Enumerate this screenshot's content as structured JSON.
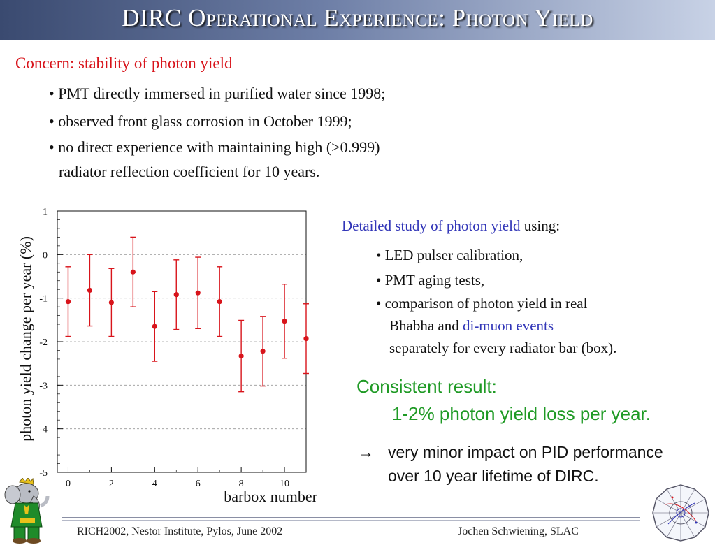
{
  "title": "DIRC Operational Experience: Photon Yield",
  "concern": "Concern: stability of photon yield",
  "bullets_top": [
    "• PMT directly immersed in purified water since 1998;",
    "• observed front glass corrosion in October 1999;",
    "• no direct experience with maintaining high (>0.999)",
    "radiator reflection coefficient for 10 years."
  ],
  "study": {
    "highlight": "Detailed study of photon yield",
    "rest": " using:",
    "bullets": [
      "• LED pulser calibration,",
      "• PMT aging tests,",
      "• comparison of photon yield in real"
    ],
    "line4_prefix": "Bhabha and ",
    "line4_highlight": "di-muon events",
    "line5": "separately for every radiator bar (box)."
  },
  "result": {
    "line1": "Consistent result:",
    "line2": "1-2% photon yield loss per year."
  },
  "impact": {
    "arrow": "→",
    "line1": "very minor impact on PID performance",
    "line2": "over 10 year lifetime of DIRC."
  },
  "footer": {
    "left": "RICH2002, Nestor Institute, Pylos, June 2002",
    "right": "Jochen Schwiening, SLAC"
  },
  "colors": {
    "red": "#d8141b",
    "blue": "#3236b8",
    "green": "#1f9a25",
    "title_bg": "#5a6a92"
  },
  "chart_data": {
    "type": "scatter",
    "xlabel": "barbox number",
    "ylabel": "photon yield change per year (%)",
    "xlim": [
      -0.5,
      11
    ],
    "ylim": [
      -5,
      1
    ],
    "xticks": [
      "0",
      "2",
      "4",
      "6",
      "8",
      "10"
    ],
    "yticks": [
      "1",
      "0",
      "-1",
      "-2",
      "-3",
      "-4",
      "-5"
    ],
    "grid": "horizontal dashed",
    "x": [
      0,
      1,
      2,
      3,
      4,
      5,
      6,
      7,
      8,
      9,
      10,
      11
    ],
    "y": [
      -1.08,
      -0.82,
      -1.1,
      -0.4,
      -1.65,
      -0.92,
      -0.88,
      -1.08,
      -2.33,
      -2.22,
      -1.53,
      -1.93
    ],
    "err": [
      0.8,
      0.82,
      0.78,
      0.8,
      0.8,
      0.8,
      0.82,
      0.8,
      0.82,
      0.8,
      0.85,
      0.8
    ],
    "marker_color": "#d8141b"
  }
}
